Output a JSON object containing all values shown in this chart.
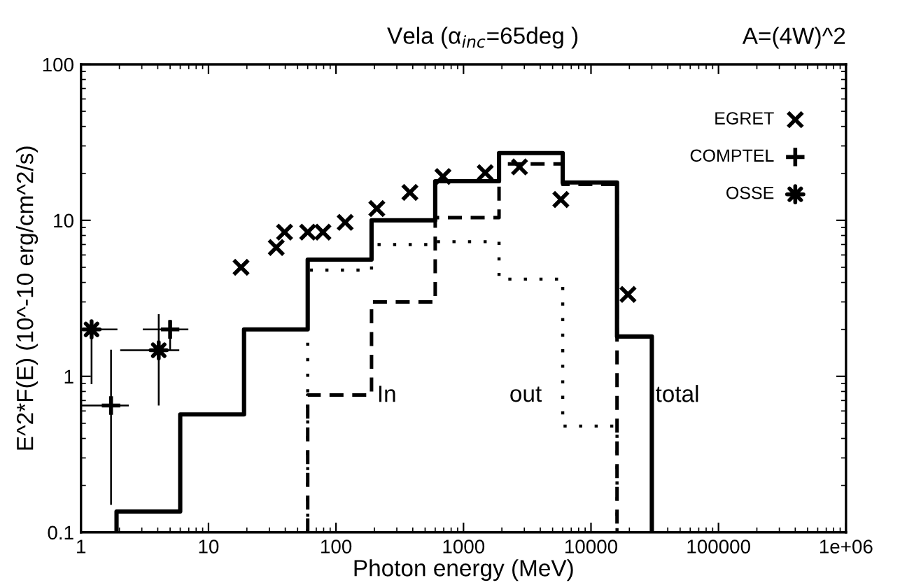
{
  "chart_data": {
    "type": "step",
    "title": "Vela (α$_{inc}$=65deg )",
    "xlabel": "Photon energy (MeV)",
    "ylabel": "E^2*F(E) (10^-10 erg/cm^2/s)",
    "log": "xy",
    "xlim": [
      1,
      1000000
    ],
    "ylim": [
      0.1,
      100
    ],
    "xticks": [
      1,
      10,
      100,
      1000,
      10000,
      100000,
      {
        "value": 1000000,
        "label": "1e+06"
      }
    ],
    "yticks": [
      0.1,
      1,
      10,
      100
    ],
    "grid": false,
    "legend": "top right",
    "annotations": [
      "A=(4W)^2",
      {
        "text": "In",
        "x": 210,
        "y": 0.75
      },
      "out",
      {
        "text": "total",
        "x": 32000,
        "y": 0.75
      }
    ],
    "series": [
      {
        "color": "#000000",
        "line_style": "solid",
        "x": [
          1.9,
          1.9,
          6,
          19,
          60,
          190,
          600,
          1900,
          6000,
          16000,
          30000
        ],
        "values": [
          0.1,
          0.136,
          0.57,
          2.0,
          5.6,
          10,
          17.8,
          27,
          17.5,
          1.8,
          0.1
        ]
      },
      {
        "color": "#000000",
        "line_style": "dashed",
        "x": [
          60,
          60,
          190,
          600,
          1900,
          6000,
          16000
        ],
        "values": [
          0.1,
          0.76,
          3.0,
          10.4,
          23,
          17,
          0.1
        ]
      },
      {
        "color": "#000000",
        "line_style": "dotted",
        "x": [
          60,
          60,
          190,
          600,
          1900,
          6000,
          16000
        ],
        "values": [
          0.1,
          4.8,
          7.0,
          7.3,
          4.2,
          0.48,
          0.1
        ]
      },
      {
        "type": "scatter",
        "name": "EGRET",
        "color": "#000000",
        "marker": "cross",
        "x": [
          18,
          34,
          39.5,
          60,
          79,
          118,
          209,
          380,
          690,
          1480,
          2750,
          5800,
          19500
        ],
        "values": [
          5.0,
          6.7,
          8.4,
          8.4,
          8.4,
          9.7,
          11.9,
          15.1,
          19.1,
          20.2,
          22,
          13.6,
          3.35
        ]
      },
      {
        "type": "scatter",
        "name": "COMPTEL",
        "color": "#000000",
        "marker": "plus",
        "x": [
          1.72,
          5.0
        ],
        "values": [
          0.65,
          2.0
        ],
        "xerrors": [
          [
            1.0,
            2.37
          ],
          [
            3.05,
            6.95
          ]
        ],
        "errors": [
          [
            0.15,
            1.48
          ],
          [
            1.47,
            2.3
          ]
        ]
      },
      {
        "type": "scatter",
        "name": "OSSE",
        "color": "#000000",
        "marker": "star",
        "x": [
          1.21,
          4.07
        ],
        "values": [
          2.0,
          1.47
        ],
        "xerrors": [
          [
            1.0,
            1.93
          ],
          [
            2.03,
            5.9
          ]
        ],
        "errors": [
          [
            0.89,
            2.0
          ],
          [
            0.65,
            2.5
          ]
        ]
      }
    ]
  }
}
